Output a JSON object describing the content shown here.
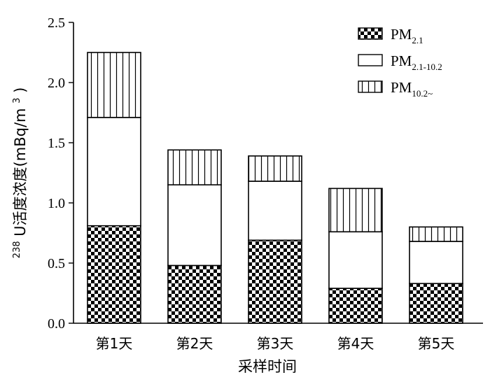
{
  "chart_data": {
    "type": "bar",
    "stacked": true,
    "categories": [
      "第1天",
      "第2天",
      "第3天",
      "第4天",
      "第5天"
    ],
    "series": [
      {
        "name": "PM2.1",
        "label_main": "PM",
        "label_sub": "2.1",
        "pattern": "checker",
        "values": [
          0.81,
          0.48,
          0.69,
          0.29,
          0.33
        ]
      },
      {
        "name": "PM2.1-10.2",
        "label_main": "PM",
        "label_sub": "2.1-10.2",
        "pattern": "blank",
        "values": [
          0.9,
          0.67,
          0.49,
          0.47,
          0.35
        ]
      },
      {
        "name": "PM10.2~",
        "label_main": "PM",
        "label_sub": "10.2~",
        "pattern": "vlines",
        "values": [
          0.54,
          0.29,
          0.21,
          0.36,
          0.12
        ]
      }
    ],
    "xlabel": "采样时间",
    "ylabel_sup": "238",
    "ylabel_main": "U活度浓度(mBq/m",
    "ylabel_unit_sup": "3",
    "ylabel_close": ")",
    "ylim": [
      0,
      2.5
    ],
    "yticks": [
      "0.0",
      "0.5",
      "1.0",
      "1.5",
      "2.0",
      "2.5"
    ],
    "legend_position": "top-right",
    "grid": false,
    "colors": {
      "ink": "#000000",
      "background": "#ffffff"
    }
  }
}
